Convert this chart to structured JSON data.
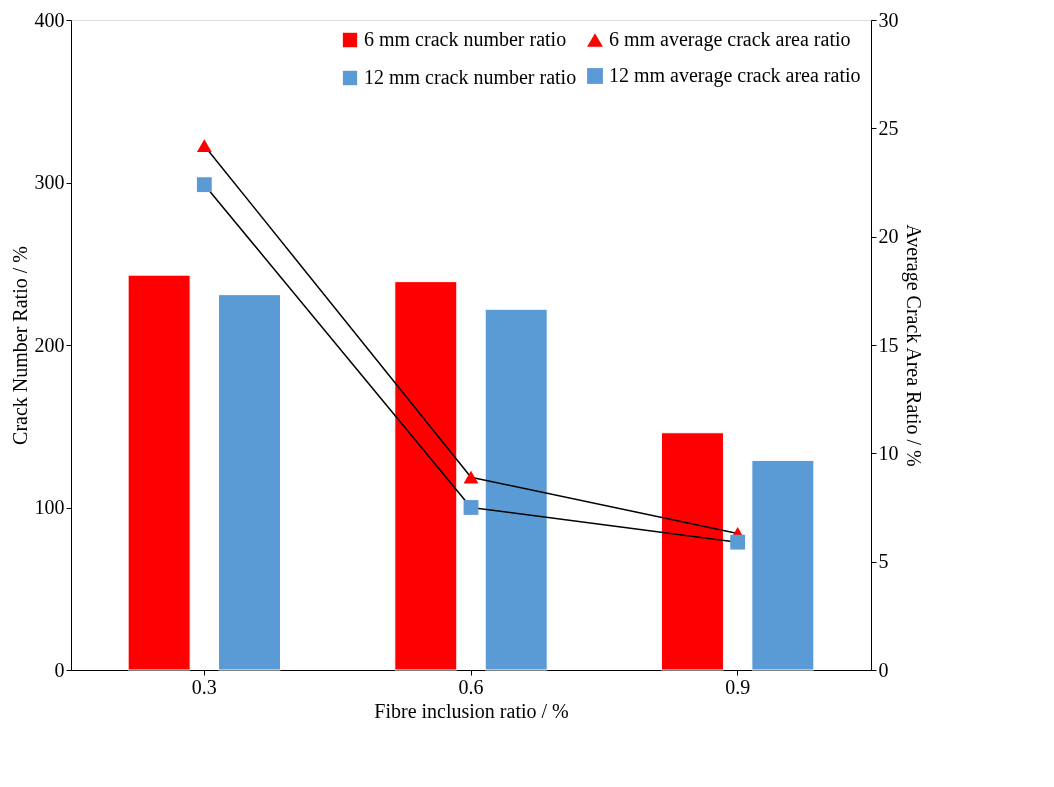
{
  "chart_data": {
    "type": "bar",
    "categories": [
      "0.3",
      "0.6",
      "0.9"
    ],
    "xlabel": "Fibre inclusion ratio / %",
    "ylabel": "Crack Number Ratio / %",
    "y2label": "Average Crack Area Ratio / %",
    "ylim": [
      0,
      400
    ],
    "yticks": [
      0,
      100,
      200,
      300,
      400
    ],
    "y2lim": [
      0,
      30
    ],
    "y2ticks": [
      0,
      5,
      10,
      15,
      20,
      25,
      30
    ],
    "grid": false,
    "legend": "top right",
    "series": [
      {
        "name": "6 mm crack number ratio",
        "type": "bar",
        "color": "#ff0000",
        "values": [
          243,
          239,
          146
        ]
      },
      {
        "name": "12 mm crack number ratio",
        "type": "bar",
        "color": "#5b9bd5",
        "values": [
          231,
          222,
          129
        ]
      },
      {
        "name": "6 mm average crack area ratio",
        "type": "line",
        "axis": "y2",
        "marker": "triangle",
        "color": "#ff0000",
        "values": [
          24.2,
          8.9,
          6.3
        ]
      },
      {
        "name": "12 mm average crack area ratio",
        "type": "line",
        "axis": "y2",
        "marker": "square",
        "color": "#5b9bd5",
        "values": [
          22.4,
          7.5,
          5.9
        ]
      }
    ]
  }
}
